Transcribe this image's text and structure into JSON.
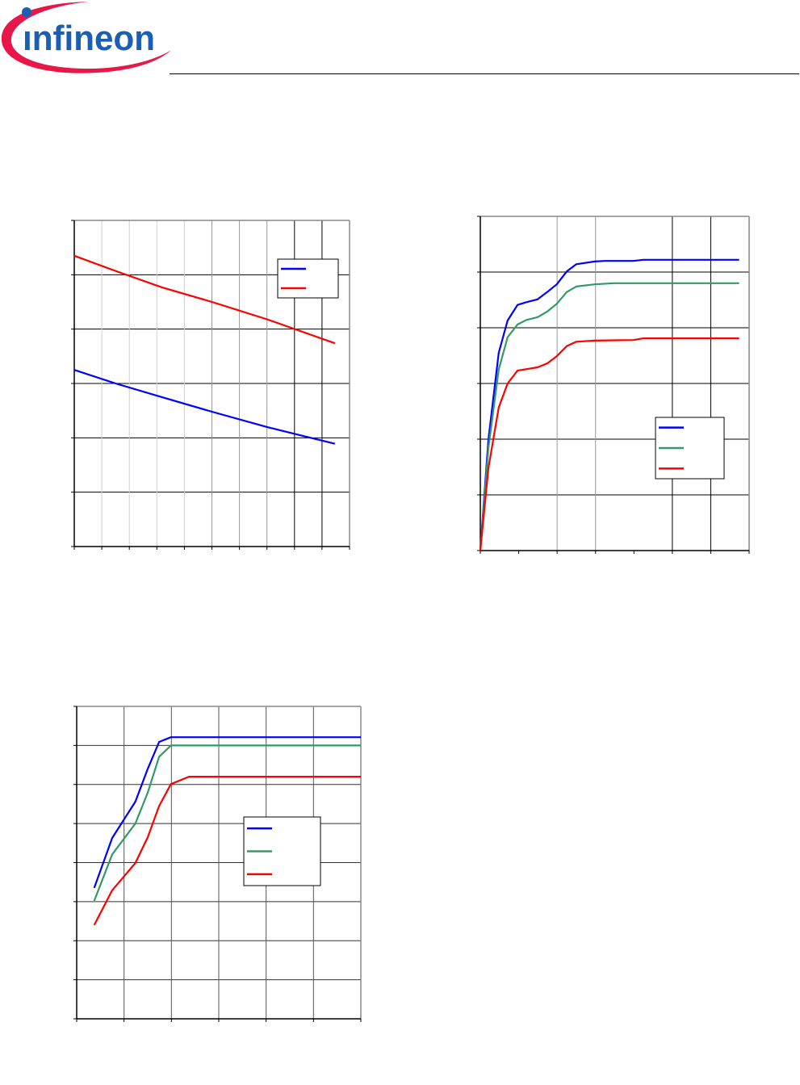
{
  "header": {
    "logo_text": "infineon",
    "logo_colors": {
      "text": "#1a5fb4",
      "swoosh": "#e8174a"
    }
  },
  "chart_data": [
    {
      "type": "line",
      "xlim": [
        0,
        10
      ],
      "ylim": [
        0,
        6
      ],
      "grid": true,
      "legend": "top-right",
      "series": [
        {
          "color": "#0000ff",
          "points": [
            [
              0,
              3.25
            ],
            [
              1.5,
              3.0
            ],
            [
              3.17,
              2.75
            ],
            [
              5,
              2.48
            ],
            [
              7,
              2.2
            ],
            [
              9.47,
              1.89
            ]
          ]
        },
        {
          "color": "#ff0000",
          "points": [
            [
              0,
              5.35
            ],
            [
              1.5,
              5.07
            ],
            [
              3.17,
              4.77
            ],
            [
              5,
              4.5
            ],
            [
              7,
              4.18
            ],
            [
              9.47,
              3.74
            ]
          ]
        }
      ]
    },
    {
      "type": "line",
      "xlim": [
        0,
        7
      ],
      "ylim": [
        0,
        6
      ],
      "grid": true,
      "legend": "bottom-right",
      "series": [
        {
          "color": "#0000ff",
          "points": [
            [
              0,
              0
            ],
            [
              0.21,
              1.99
            ],
            [
              0.48,
              3.55
            ],
            [
              0.71,
              4.13
            ],
            [
              0.97,
              4.41
            ],
            [
              1.2,
              4.46
            ],
            [
              1.49,
              4.51
            ],
            [
              1.74,
              4.64
            ],
            [
              1.99,
              4.78
            ],
            [
              2.25,
              5.01
            ],
            [
              2.5,
              5.14
            ],
            [
              2.98,
              5.19
            ],
            [
              3.24,
              5.2
            ],
            [
              3.99,
              5.2
            ],
            [
              4.24,
              5.22
            ],
            [
              6.74,
              5.22
            ]
          ]
        },
        {
          "color": "#339966",
          "points": [
            [
              0,
              0
            ],
            [
              0.21,
              1.84
            ],
            [
              0.48,
              3.25
            ],
            [
              0.71,
              3.83
            ],
            [
              0.97,
              4.06
            ],
            [
              1.2,
              4.14
            ],
            [
              1.49,
              4.19
            ],
            [
              1.74,
              4.29
            ],
            [
              1.99,
              4.43
            ],
            [
              2.25,
              4.64
            ],
            [
              2.5,
              4.74
            ],
            [
              2.98,
              4.78
            ],
            [
              3.47,
              4.8
            ],
            [
              6.74,
              4.8
            ]
          ]
        },
        {
          "color": "#ff0000",
          "points": [
            [
              0,
              0
            ],
            [
              0.21,
              1.48
            ],
            [
              0.48,
              2.57
            ],
            [
              0.71,
              3.0
            ],
            [
              0.97,
              3.23
            ],
            [
              1.49,
              3.29
            ],
            [
              1.74,
              3.36
            ],
            [
              1.99,
              3.49
            ],
            [
              2.25,
              3.67
            ],
            [
              2.5,
              3.75
            ],
            [
              2.98,
              3.77
            ],
            [
              3.99,
              3.78
            ],
            [
              4.24,
              3.81
            ],
            [
              6.74,
              3.81
            ]
          ]
        }
      ]
    },
    {
      "type": "line",
      "xlim": [
        0,
        6
      ],
      "ylim": [
        0,
        8
      ],
      "grid": true,
      "legend": "center-right",
      "series": [
        {
          "color": "#0000ff",
          "points": [
            [
              0.37,
              3.35
            ],
            [
              0.75,
              4.63
            ],
            [
              1.24,
              5.56
            ],
            [
              1.5,
              6.4
            ],
            [
              1.74,
              7.09
            ],
            [
              1.99,
              7.21
            ],
            [
              6.0,
              7.21
            ]
          ]
        },
        {
          "color": "#339966",
          "points": [
            [
              0.37,
              3.02
            ],
            [
              0.75,
              4.21
            ],
            [
              1.24,
              5.0
            ],
            [
              1.5,
              5.79
            ],
            [
              1.74,
              6.71
            ],
            [
              1.99,
              7.0
            ],
            [
              6.0,
              7.0
            ]
          ]
        },
        {
          "color": "#ff0000",
          "points": [
            [
              0.37,
              2.4
            ],
            [
              0.75,
              3.29
            ],
            [
              1.24,
              3.99
            ],
            [
              1.5,
              4.65
            ],
            [
              1.74,
              5.45
            ],
            [
              1.99,
              6.01
            ],
            [
              2.37,
              6.2
            ],
            [
              6.0,
              6.2
            ]
          ]
        }
      ]
    }
  ]
}
